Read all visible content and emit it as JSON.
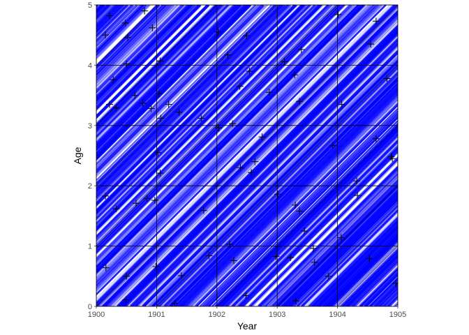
{
  "chart_data": {
    "type": "scatter",
    "title": "",
    "xlabel": "Year",
    "ylabel": "Age",
    "xlim": [
      1900,
      1905
    ],
    "ylim": [
      0,
      5
    ],
    "x_ticks": [
      1900,
      1901,
      1902,
      1903,
      1904,
      1905
    ],
    "x_tick_labels": [
      "1900",
      "1901",
      "1902",
      "1903",
      "1904",
      "1905"
    ],
    "y_ticks": [
      0,
      1,
      2,
      3,
      4,
      5
    ],
    "y_tick_labels": [
      "0",
      "1",
      "2",
      "3",
      "4",
      "5"
    ],
    "grid": true,
    "background": "lexis-lines",
    "lifeline_color": "#0000ff",
    "gridline_color": "#000000",
    "point_marker": "plus",
    "point_color": "#000000",
    "points": [
      {
        "x": 1900.15,
        "y": 4.5
      },
      {
        "x": 1900.22,
        "y": 4.82
      },
      {
        "x": 1900.48,
        "y": 4.7
      },
      {
        "x": 1900.52,
        "y": 4.46
      },
      {
        "x": 1900.8,
        "y": 4.9
      },
      {
        "x": 1900.93,
        "y": 4.62
      },
      {
        "x": 1900.28,
        "y": 3.76
      },
      {
        "x": 1900.5,
        "y": 4.02
      },
      {
        "x": 1900.22,
        "y": 3.35
      },
      {
        "x": 1900.33,
        "y": 3.29
      },
      {
        "x": 1900.64,
        "y": 3.5
      },
      {
        "x": 1900.77,
        "y": 3.37
      },
      {
        "x": 1900.91,
        "y": 3.28
      },
      {
        "x": 1901.06,
        "y": 4.07
      },
      {
        "x": 1901.04,
        "y": 3.53
      },
      {
        "x": 1901.07,
        "y": 3.12
      },
      {
        "x": 1901.2,
        "y": 3.35
      },
      {
        "x": 1901.37,
        "y": 3.22
      },
      {
        "x": 1901.74,
        "y": 3.12
      },
      {
        "x": 1902.02,
        "y": 4.55
      },
      {
        "x": 1902.18,
        "y": 4.17
      },
      {
        "x": 1902.49,
        "y": 4.49
      },
      {
        "x": 1902.54,
        "y": 3.9
      },
      {
        "x": 1902.38,
        "y": 3.65
      },
      {
        "x": 1902.03,
        "y": 2.96
      },
      {
        "x": 1902.26,
        "y": 3.03
      },
      {
        "x": 1902.87,
        "y": 3.55
      },
      {
        "x": 1903.12,
        "y": 4.06
      },
      {
        "x": 1903.29,
        "y": 3.84
      },
      {
        "x": 1903.4,
        "y": 4.26
      },
      {
        "x": 1903.37,
        "y": 3.4
      },
      {
        "x": 1904.01,
        "y": 4.84
      },
      {
        "x": 1904.64,
        "y": 4.73
      },
      {
        "x": 1904.55,
        "y": 4.35
      },
      {
        "x": 1904.82,
        "y": 3.78
      },
      {
        "x": 1904.07,
        "y": 3.35
      },
      {
        "x": 1900.15,
        "y": 1.83
      },
      {
        "x": 1900.33,
        "y": 1.62
      },
      {
        "x": 1900.66,
        "y": 1.71
      },
      {
        "x": 1900.84,
        "y": 1.79
      },
      {
        "x": 1900.97,
        "y": 1.76
      },
      {
        "x": 1901.02,
        "y": 2.55
      },
      {
        "x": 1901.06,
        "y": 2.21
      },
      {
        "x": 1901.78,
        "y": 1.59
      },
      {
        "x": 1902.39,
        "y": 2.3
      },
      {
        "x": 1902.57,
        "y": 2.22
      },
      {
        "x": 1902.63,
        "y": 2.4
      },
      {
        "x": 1902.75,
        "y": 2.81
      },
      {
        "x": 1903.01,
        "y": 1.86
      },
      {
        "x": 1903.3,
        "y": 1.68
      },
      {
        "x": 1903.37,
        "y": 1.58
      },
      {
        "x": 1903.92,
        "y": 2.67
      },
      {
        "x": 1904.32,
        "y": 2.08
      },
      {
        "x": 1904.33,
        "y": 1.84
      },
      {
        "x": 1904.64,
        "y": 2.78
      },
      {
        "x": 1904.89,
        "y": 2.48
      },
      {
        "x": 1904.91,
        "y": 2.45
      },
      {
        "x": 1900.16,
        "y": 0.64
      },
      {
        "x": 1900.5,
        "y": 0.5
      },
      {
        "x": 1900.49,
        "y": 0.11
      },
      {
        "x": 1900.99,
        "y": 0.66
      },
      {
        "x": 1901.3,
        "y": 0.05
      },
      {
        "x": 1901.41,
        "y": 0.51
      },
      {
        "x": 1901.87,
        "y": 0.84
      },
      {
        "x": 1902.21,
        "y": 1.03
      },
      {
        "x": 1902.28,
        "y": 0.76
      },
      {
        "x": 1902.48,
        "y": 0.18
      },
      {
        "x": 1902.98,
        "y": 0.83
      },
      {
        "x": 1903.22,
        "y": 0.81
      },
      {
        "x": 1903.31,
        "y": 0.09
      },
      {
        "x": 1903.45,
        "y": 1.25
      },
      {
        "x": 1903.6,
        "y": 0.96
      },
      {
        "x": 1903.62,
        "y": 0.73
      },
      {
        "x": 1903.85,
        "y": 0.5
      },
      {
        "x": 1904.06,
        "y": 1.14
      },
      {
        "x": 1904.53,
        "y": 0.79
      },
      {
        "x": 1904.97,
        "y": 0.38
      }
    ]
  }
}
